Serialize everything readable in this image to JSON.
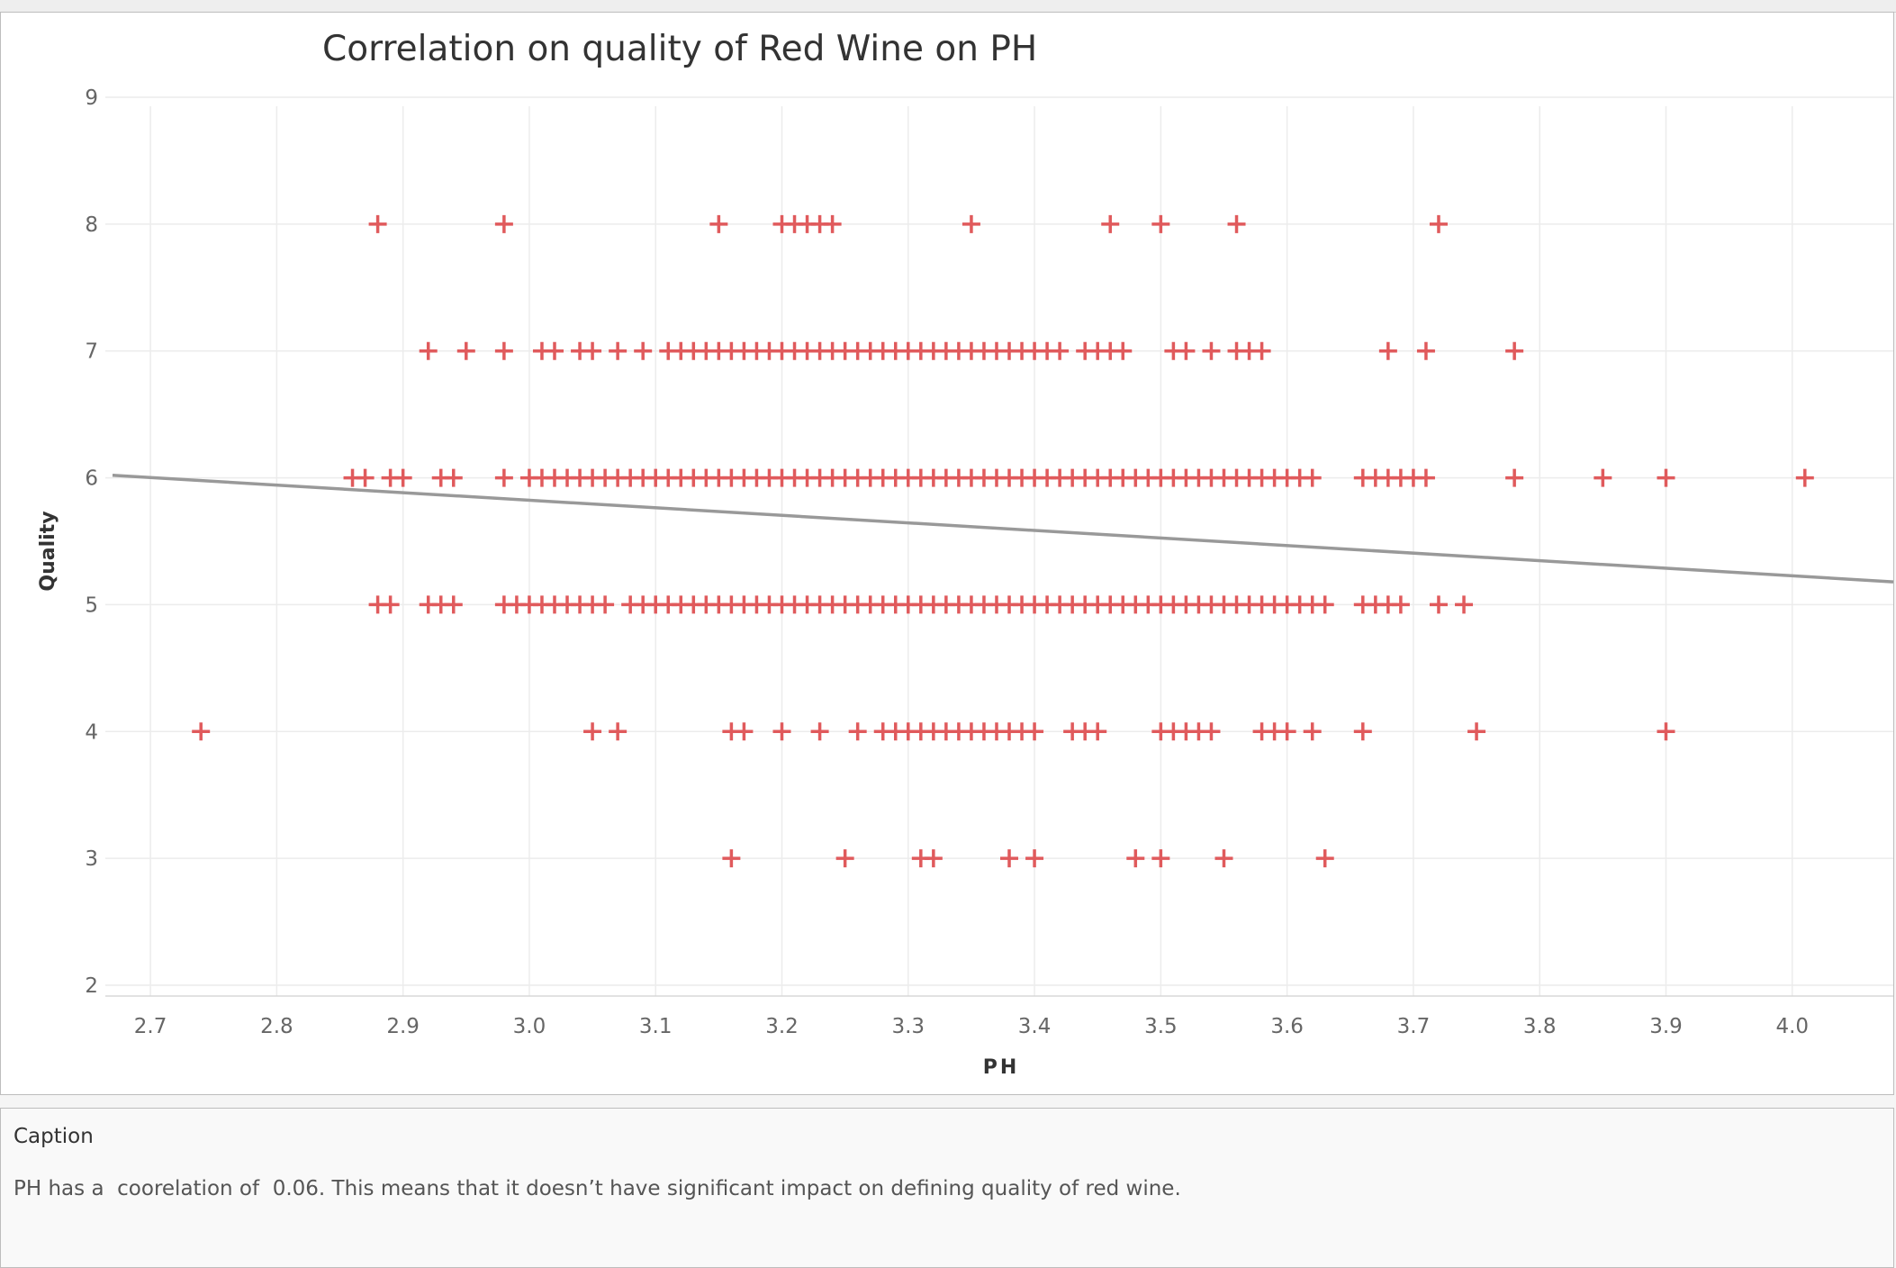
{
  "chart_data": {
    "type": "scatter",
    "title": "Correlation on quality of Red Wine on PH",
    "xlabel": "PH",
    "ylabel": "Quality",
    "xlim": [
      2.67,
      4.08
    ],
    "ylim": [
      2,
      9
    ],
    "x_ticks": [
      "2.7",
      "2.8",
      "2.9",
      "3.0",
      "3.1",
      "3.2",
      "3.3",
      "3.4",
      "3.5",
      "3.6",
      "3.7",
      "3.8",
      "3.9",
      "4.0"
    ],
    "y_ticks": [
      "2",
      "3",
      "4",
      "5",
      "6",
      "7",
      "8",
      "9"
    ],
    "grid": true,
    "marker": "plus",
    "marker_color": "#e05a5c",
    "trend_line_color": "#999999",
    "trend_line": {
      "x": [
        2.67,
        4.08
      ],
      "y": [
        6.02,
        5.18
      ]
    },
    "series": [
      {
        "points": [
          [
            2.88,
            8
          ],
          [
            2.98,
            8
          ],
          [
            3.15,
            8
          ],
          [
            3.2,
            8
          ],
          [
            3.21,
            8
          ],
          [
            3.22,
            8
          ],
          [
            3.23,
            8
          ],
          [
            3.24,
            8
          ],
          [
            3.35,
            8
          ],
          [
            3.46,
            8
          ],
          [
            3.5,
            8
          ],
          [
            3.56,
            8
          ],
          [
            3.72,
            8
          ],
          [
            2.92,
            7
          ],
          [
            2.95,
            7
          ],
          [
            2.98,
            7
          ],
          [
            3.01,
            7
          ],
          [
            3.02,
            7
          ],
          [
            3.04,
            7
          ],
          [
            3.05,
            7
          ],
          [
            3.07,
            7
          ],
          [
            3.09,
            7
          ],
          [
            3.11,
            7
          ],
          [
            3.12,
            7
          ],
          [
            3.13,
            7
          ],
          [
            3.14,
            7
          ],
          [
            3.15,
            7
          ],
          [
            3.16,
            7
          ],
          [
            3.17,
            7
          ],
          [
            3.18,
            7
          ],
          [
            3.19,
            7
          ],
          [
            3.2,
            7
          ],
          [
            3.21,
            7
          ],
          [
            3.22,
            7
          ],
          [
            3.23,
            7
          ],
          [
            3.24,
            7
          ],
          [
            3.25,
            7
          ],
          [
            3.26,
            7
          ],
          [
            3.27,
            7
          ],
          [
            3.28,
            7
          ],
          [
            3.29,
            7
          ],
          [
            3.3,
            7
          ],
          [
            3.31,
            7
          ],
          [
            3.32,
            7
          ],
          [
            3.33,
            7
          ],
          [
            3.34,
            7
          ],
          [
            3.35,
            7
          ],
          [
            3.36,
            7
          ],
          [
            3.37,
            7
          ],
          [
            3.38,
            7
          ],
          [
            3.39,
            7
          ],
          [
            3.4,
            7
          ],
          [
            3.41,
            7
          ],
          [
            3.42,
            7
          ],
          [
            3.44,
            7
          ],
          [
            3.45,
            7
          ],
          [
            3.46,
            7
          ],
          [
            3.47,
            7
          ],
          [
            3.51,
            7
          ],
          [
            3.52,
            7
          ],
          [
            3.54,
            7
          ],
          [
            3.56,
            7
          ],
          [
            3.57,
            7
          ],
          [
            3.58,
            7
          ],
          [
            3.68,
            7
          ],
          [
            3.71,
            7
          ],
          [
            3.78,
            7
          ],
          [
            2.86,
            6
          ],
          [
            2.87,
            6
          ],
          [
            2.89,
            6
          ],
          [
            2.9,
            6
          ],
          [
            2.93,
            6
          ],
          [
            2.94,
            6
          ],
          [
            2.98,
            6
          ],
          [
            3.0,
            6
          ],
          [
            3.01,
            6
          ],
          [
            3.02,
            6
          ],
          [
            3.03,
            6
          ],
          [
            3.04,
            6
          ],
          [
            3.05,
            6
          ],
          [
            3.06,
            6
          ],
          [
            3.07,
            6
          ],
          [
            3.08,
            6
          ],
          [
            3.09,
            6
          ],
          [
            3.1,
            6
          ],
          [
            3.11,
            6
          ],
          [
            3.12,
            6
          ],
          [
            3.13,
            6
          ],
          [
            3.14,
            6
          ],
          [
            3.15,
            6
          ],
          [
            3.16,
            6
          ],
          [
            3.17,
            6
          ],
          [
            3.18,
            6
          ],
          [
            3.19,
            6
          ],
          [
            3.2,
            6
          ],
          [
            3.21,
            6
          ],
          [
            3.22,
            6
          ],
          [
            3.23,
            6
          ],
          [
            3.24,
            6
          ],
          [
            3.25,
            6
          ],
          [
            3.26,
            6
          ],
          [
            3.27,
            6
          ],
          [
            3.28,
            6
          ],
          [
            3.29,
            6
          ],
          [
            3.3,
            6
          ],
          [
            3.31,
            6
          ],
          [
            3.32,
            6
          ],
          [
            3.33,
            6
          ],
          [
            3.34,
            6
          ],
          [
            3.35,
            6
          ],
          [
            3.36,
            6
          ],
          [
            3.37,
            6
          ],
          [
            3.38,
            6
          ],
          [
            3.39,
            6
          ],
          [
            3.4,
            6
          ],
          [
            3.41,
            6
          ],
          [
            3.42,
            6
          ],
          [
            3.43,
            6
          ],
          [
            3.44,
            6
          ],
          [
            3.45,
            6
          ],
          [
            3.46,
            6
          ],
          [
            3.47,
            6
          ],
          [
            3.48,
            6
          ],
          [
            3.49,
            6
          ],
          [
            3.5,
            6
          ],
          [
            3.51,
            6
          ],
          [
            3.52,
            6
          ],
          [
            3.53,
            6
          ],
          [
            3.54,
            6
          ],
          [
            3.55,
            6
          ],
          [
            3.56,
            6
          ],
          [
            3.57,
            6
          ],
          [
            3.58,
            6
          ],
          [
            3.59,
            6
          ],
          [
            3.6,
            6
          ],
          [
            3.61,
            6
          ],
          [
            3.62,
            6
          ],
          [
            3.66,
            6
          ],
          [
            3.67,
            6
          ],
          [
            3.68,
            6
          ],
          [
            3.69,
            6
          ],
          [
            3.7,
            6
          ],
          [
            3.71,
            6
          ],
          [
            3.78,
            6
          ],
          [
            3.85,
            6
          ],
          [
            3.9,
            6
          ],
          [
            4.01,
            6
          ],
          [
            2.88,
            5
          ],
          [
            2.89,
            5
          ],
          [
            2.92,
            5
          ],
          [
            2.93,
            5
          ],
          [
            2.94,
            5
          ],
          [
            2.98,
            5
          ],
          [
            2.99,
            5
          ],
          [
            3.0,
            5
          ],
          [
            3.01,
            5
          ],
          [
            3.02,
            5
          ],
          [
            3.03,
            5
          ],
          [
            3.04,
            5
          ],
          [
            3.05,
            5
          ],
          [
            3.06,
            5
          ],
          [
            3.08,
            5
          ],
          [
            3.09,
            5
          ],
          [
            3.1,
            5
          ],
          [
            3.11,
            5
          ],
          [
            3.12,
            5
          ],
          [
            3.13,
            5
          ],
          [
            3.14,
            5
          ],
          [
            3.15,
            5
          ],
          [
            3.16,
            5
          ],
          [
            3.17,
            5
          ],
          [
            3.18,
            5
          ],
          [
            3.19,
            5
          ],
          [
            3.2,
            5
          ],
          [
            3.21,
            5
          ],
          [
            3.22,
            5
          ],
          [
            3.23,
            5
          ],
          [
            3.24,
            5
          ],
          [
            3.25,
            5
          ],
          [
            3.26,
            5
          ],
          [
            3.27,
            5
          ],
          [
            3.28,
            5
          ],
          [
            3.29,
            5
          ],
          [
            3.3,
            5
          ],
          [
            3.31,
            5
          ],
          [
            3.32,
            5
          ],
          [
            3.33,
            5
          ],
          [
            3.34,
            5
          ],
          [
            3.35,
            5
          ],
          [
            3.36,
            5
          ],
          [
            3.37,
            5
          ],
          [
            3.38,
            5
          ],
          [
            3.39,
            5
          ],
          [
            3.4,
            5
          ],
          [
            3.41,
            5
          ],
          [
            3.42,
            5
          ],
          [
            3.43,
            5
          ],
          [
            3.44,
            5
          ],
          [
            3.45,
            5
          ],
          [
            3.46,
            5
          ],
          [
            3.47,
            5
          ],
          [
            3.48,
            5
          ],
          [
            3.49,
            5
          ],
          [
            3.5,
            5
          ],
          [
            3.51,
            5
          ],
          [
            3.52,
            5
          ],
          [
            3.53,
            5
          ],
          [
            3.54,
            5
          ],
          [
            3.55,
            5
          ],
          [
            3.56,
            5
          ],
          [
            3.57,
            5
          ],
          [
            3.58,
            5
          ],
          [
            3.59,
            5
          ],
          [
            3.6,
            5
          ],
          [
            3.61,
            5
          ],
          [
            3.62,
            5
          ],
          [
            3.63,
            5
          ],
          [
            3.66,
            5
          ],
          [
            3.67,
            5
          ],
          [
            3.68,
            5
          ],
          [
            3.69,
            5
          ],
          [
            3.72,
            5
          ],
          [
            3.74,
            5
          ],
          [
            2.74,
            4
          ],
          [
            3.05,
            4
          ],
          [
            3.07,
            4
          ],
          [
            3.16,
            4
          ],
          [
            3.17,
            4
          ],
          [
            3.2,
            4
          ],
          [
            3.23,
            4
          ],
          [
            3.26,
            4
          ],
          [
            3.28,
            4
          ],
          [
            3.29,
            4
          ],
          [
            3.3,
            4
          ],
          [
            3.31,
            4
          ],
          [
            3.32,
            4
          ],
          [
            3.33,
            4
          ],
          [
            3.34,
            4
          ],
          [
            3.35,
            4
          ],
          [
            3.36,
            4
          ],
          [
            3.37,
            4
          ],
          [
            3.38,
            4
          ],
          [
            3.39,
            4
          ],
          [
            3.4,
            4
          ],
          [
            3.43,
            4
          ],
          [
            3.44,
            4
          ],
          [
            3.45,
            4
          ],
          [
            3.5,
            4
          ],
          [
            3.51,
            4
          ],
          [
            3.52,
            4
          ],
          [
            3.53,
            4
          ],
          [
            3.54,
            4
          ],
          [
            3.58,
            4
          ],
          [
            3.59,
            4
          ],
          [
            3.6,
            4
          ],
          [
            3.62,
            4
          ],
          [
            3.66,
            4
          ],
          [
            3.75,
            4
          ],
          [
            3.9,
            4
          ],
          [
            3.16,
            3
          ],
          [
            3.25,
            3
          ],
          [
            3.31,
            3
          ],
          [
            3.32,
            3
          ],
          [
            3.38,
            3
          ],
          [
            3.4,
            3
          ],
          [
            3.48,
            3
          ],
          [
            3.5,
            3
          ],
          [
            3.55,
            3
          ],
          [
            3.63,
            3
          ]
        ]
      }
    ]
  },
  "caption": {
    "title": "Caption",
    "text": "PH has a  coorelation of  0.06. This means that it doesn’t have significant impact on defining quality of red wine."
  }
}
